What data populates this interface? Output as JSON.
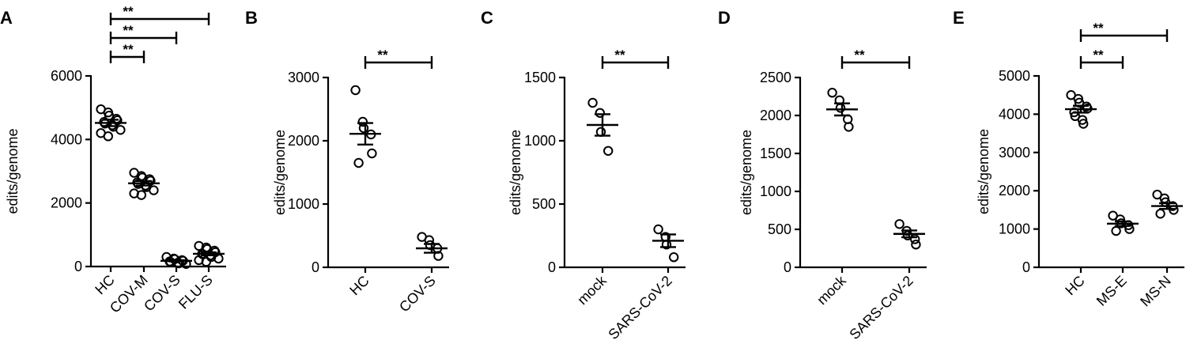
{
  "chart_data": [
    {
      "type": "scatter",
      "panel": "A",
      "ylabel": "edits/genome",
      "yticks": [
        0,
        2000,
        4000,
        6000
      ],
      "ylim": [
        0,
        6000
      ],
      "categories": [
        "HC",
        "COV-M",
        "COV-S",
        "FLU-S"
      ],
      "points": [
        [
          4950,
          4850,
          4750,
          4650,
          4600,
          4550,
          4500,
          4450,
          4400,
          4300,
          4200,
          4100
        ],
        [
          2950,
          2850,
          2800,
          2750,
          2700,
          2650,
          2600,
          2550,
          2500,
          2400,
          2300,
          2250
        ],
        [
          300,
          250,
          230,
          200,
          180,
          160,
          140,
          120,
          100,
          80
        ],
        [
          650,
          600,
          550,
          500,
          450,
          400,
          380,
          350,
          300,
          250,
          200,
          150
        ]
      ],
      "means": [
        4520,
        2620,
        180,
        400
      ],
      "sems": [
        100,
        70,
        20,
        45
      ],
      "significance": [
        {
          "from": 0,
          "to": 1,
          "label": "**"
        },
        {
          "from": 0,
          "to": 2,
          "label": "**"
        },
        {
          "from": 0,
          "to": 3,
          "label": "**"
        }
      ]
    },
    {
      "type": "scatter",
      "panel": "B",
      "ylabel": "edits/genome",
      "yticks": [
        0,
        1000,
        2000,
        3000
      ],
      "ylim": [
        0,
        3000
      ],
      "categories": [
        "HC",
        "COV-S"
      ],
      "points": [
        [
          2800,
          2300,
          2200,
          2100,
          1800,
          1650
        ],
        [
          480,
          430,
          350,
          300,
          180
        ]
      ],
      "means": [
        2110,
        300
      ],
      "sems": [
        170,
        70
      ],
      "significance": [
        {
          "from": 0,
          "to": 1,
          "label": "**"
        }
      ]
    },
    {
      "type": "scatter",
      "panel": "C",
      "ylabel": "edits/genome",
      "yticks": [
        0,
        500,
        1000,
        1500
      ],
      "ylim": [
        0,
        1500
      ],
      "categories": [
        "mock",
        "SARS-CoV-2"
      ],
      "points": [
        [
          1300,
          1220,
          1070,
          920
        ],
        [
          300,
          240,
          180,
          80
        ]
      ],
      "means": [
        1125,
        210
      ],
      "sems": [
        85,
        50
      ],
      "significance": [
        {
          "from": 0,
          "to": 1,
          "label": "**"
        }
      ]
    },
    {
      "type": "scatter",
      "panel": "D",
      "ylabel": "edits/genome",
      "yticks": [
        0,
        500,
        1000,
        1500,
        2000,
        2500
      ],
      "ylim": [
        0,
        2500
      ],
      "categories": [
        "mock",
        "SARS-CoV-2"
      ],
      "points": [
        [
          2300,
          2200,
          2100,
          1950,
          1850
        ],
        [
          570,
          480,
          420,
          370,
          300
        ]
      ],
      "means": [
        2080,
        440
      ],
      "sems": [
        80,
        45
      ],
      "significance": [
        {
          "from": 0,
          "to": 1,
          "label": "**"
        }
      ]
    },
    {
      "type": "scatter",
      "panel": "E",
      "ylabel": "edits/genome",
      "yticks": [
        0,
        1000,
        2000,
        3000,
        4000,
        5000
      ],
      "ylim": [
        0,
        5000
      ],
      "categories": [
        "HC",
        "MS-E",
        "MS-N"
      ],
      "points": [
        [
          4500,
          4400,
          4300,
          4200,
          4150,
          4050,
          3950,
          3850,
          3750
        ],
        [
          1350,
          1250,
          1150,
          1100,
          1000,
          950
        ],
        [
          1900,
          1800,
          1700,
          1600,
          1500,
          1400
        ]
      ],
      "means": [
        4130,
        1140,
        1600
      ],
      "sems": [
        90,
        60,
        75
      ],
      "significance": [
        {
          "from": 0,
          "to": 1,
          "label": "**"
        },
        {
          "from": 0,
          "to": 2,
          "label": "**"
        }
      ]
    }
  ]
}
